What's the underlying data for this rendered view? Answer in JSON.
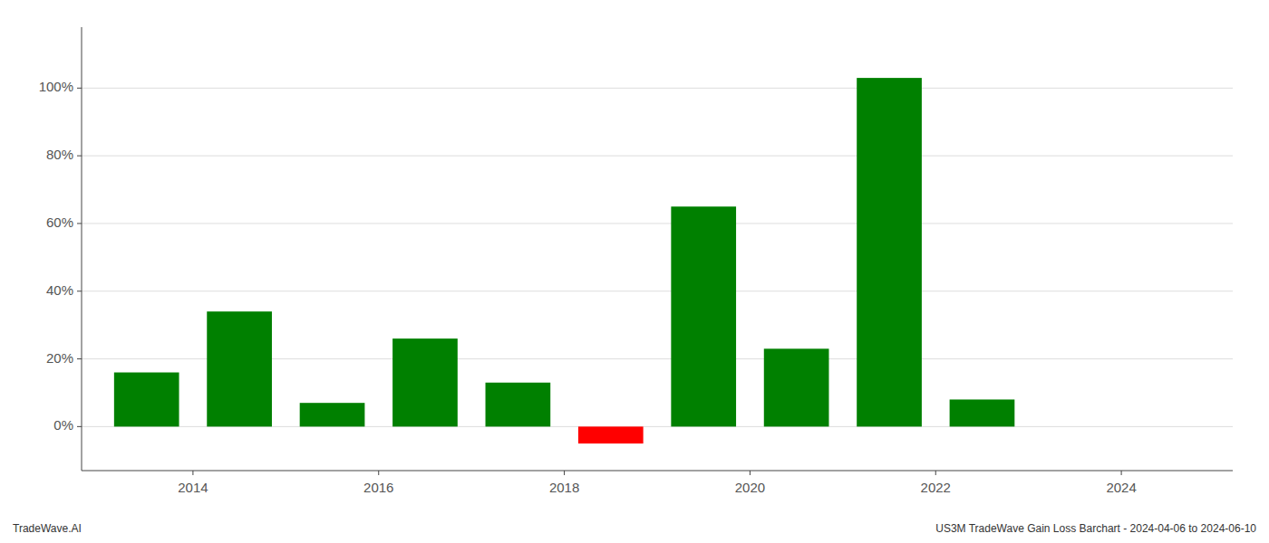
{
  "chart_data": {
    "type": "bar",
    "x": [
      2013.5,
      2014.5,
      2015.5,
      2016.5,
      2017.5,
      2018.5,
      2019.5,
      2020.5,
      2021.5,
      2022.5
    ],
    "values": [
      0.16,
      0.34,
      0.07,
      0.26,
      0.13,
      -0.05,
      0.65,
      0.23,
      1.03,
      0.08
    ],
    "colors": [
      "#008000",
      "#008000",
      "#008000",
      "#008000",
      "#008000",
      "#ff0000",
      "#008000",
      "#008000",
      "#008000",
      "#008000"
    ],
    "xlim": [
      2012.8,
      2025.2
    ],
    "ylim": [
      -0.13,
      1.18
    ],
    "xticks": [
      2014,
      2016,
      2018,
      2020,
      2022,
      2024
    ],
    "yticks": [
      {
        "value": 0.0,
        "label": "0%"
      },
      {
        "value": 0.2,
        "label": "20%"
      },
      {
        "value": 0.4,
        "label": "40%"
      },
      {
        "value": 0.6,
        "label": "60%"
      },
      {
        "value": 0.8,
        "label": "80%"
      },
      {
        "value": 1.0,
        "label": "100%"
      }
    ],
    "grid": true,
    "annotations": [
      "TradeWave.AI",
      "US3M TradeWave Gain Loss Barchart - 2024-04-06 to 2024-06-10"
    ]
  }
}
